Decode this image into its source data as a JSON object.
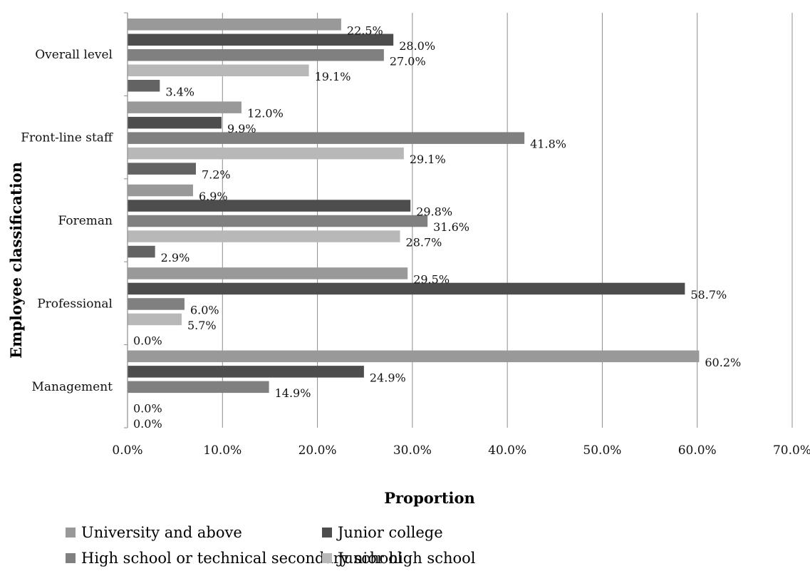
{
  "chart_data": {
    "type": "bar",
    "orientation": "horizontal",
    "xlabel": "Proportion",
    "ylabel": "Employee classification",
    "xlim": [
      0,
      70
    ],
    "x_ticks": [
      "0.0%",
      "10.0%",
      "20.0%",
      "30.0%",
      "40.0%",
      "50.0%",
      "60.0%",
      "70.0%"
    ],
    "grid": "vertical",
    "legend_position": "bottom",
    "categories": [
      "Overall level",
      "Front-line staff",
      "Foreman",
      "Professional",
      "Management"
    ],
    "series": [
      {
        "name": "University and above",
        "color": "#999999",
        "values": [
          22.5,
          12.0,
          6.9,
          29.5,
          60.2
        ],
        "labels": [
          "22.5%",
          "12.0%",
          "6.9%",
          "29.5%",
          "60.2%"
        ]
      },
      {
        "name": "Junior college",
        "color": "#4d4d4d",
        "values": [
          28.0,
          9.9,
          29.8,
          58.7,
          24.9
        ],
        "labels": [
          "28.0%",
          "9.9%",
          "29.8%",
          "58.7%",
          "24.9%"
        ]
      },
      {
        "name": "High school or technical secondary school",
        "color": "#808080",
        "values": [
          27.0,
          41.8,
          31.6,
          6.0,
          14.9
        ],
        "labels": [
          "27.0%",
          "41.8%",
          "31.6%",
          "6.0%",
          "14.9%"
        ]
      },
      {
        "name": "Junior high school",
        "color": "#b8b8b8",
        "values": [
          19.1,
          29.1,
          28.7,
          5.7,
          0.0
        ],
        "labels": [
          "19.1%",
          "29.1%",
          "28.7%",
          "5.7%",
          "0.0%"
        ]
      },
      {
        "name": "",
        "color": "#636363",
        "values": [
          3.4,
          7.2,
          2.9,
          0.0,
          0.0
        ],
        "labels": [
          "3.4%",
          "7.2%",
          "2.9%",
          "0.0%",
          "0.0%"
        ]
      }
    ]
  }
}
